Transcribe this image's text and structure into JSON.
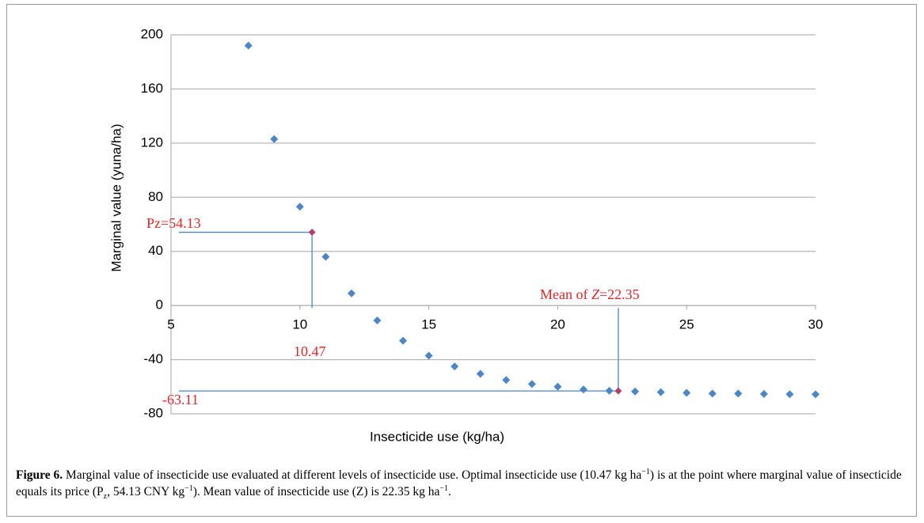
{
  "chart_data": {
    "type": "scatter",
    "x_label": "Insecticide use (kg/ha)",
    "y_label": "Marginal value (yuna/ha)",
    "x": [
      8,
      9,
      10,
      11,
      12,
      13,
      14,
      15,
      16,
      17,
      18,
      19,
      20,
      21,
      22,
      23,
      24,
      25,
      26,
      27,
      28,
      29,
      30
    ],
    "values": [
      192,
      123,
      73,
      36,
      9,
      -11,
      -26,
      -37,
      -45,
      -50.5,
      -55,
      -58,
      -60,
      -62,
      -63,
      -63.5,
      -64,
      -64.5,
      -65,
      -65,
      -65.3,
      -65.5,
      -65.6
    ],
    "color": "#4a86c8",
    "reference_lines": [
      {
        "x": 10.47,
        "y": 54.13,
        "color": "#4a86c8",
        "marker_color": "#b0406a"
      },
      {
        "x": 22.35,
        "y": -63.11,
        "color": "#4a86c8",
        "marker_color": "#b0406a"
      }
    ],
    "annotations": {
      "price": "Pz=54.13",
      "optimum": "10.47",
      "mean": [
        "Mean of ",
        "Z",
        "=22.35"
      ],
      "minimum": "-63.11"
    },
    "xlim": [
      5,
      30
    ],
    "xticks": [
      5,
      10,
      15,
      20,
      25,
      30
    ],
    "ylim": [
      -80,
      200
    ],
    "yticks": [
      200,
      160,
      120,
      80,
      40,
      0,
      -40,
      -80
    ],
    "grid": true
  },
  "caption": {
    "label": "Figure 6.",
    "segments": [
      " Marginal value of insecticide use evaluated at different levels of insecticide use. Optimal insecticide use (10.47 kg ha",
      "−1",
      ") is at the point where marginal value of insecticide equals its price (P",
      "z",
      ", 54.13 CNY kg",
      "−1",
      "). Mean value of insecticide use (Z) is 22.35 kg ha",
      "−1",
      "."
    ]
  }
}
